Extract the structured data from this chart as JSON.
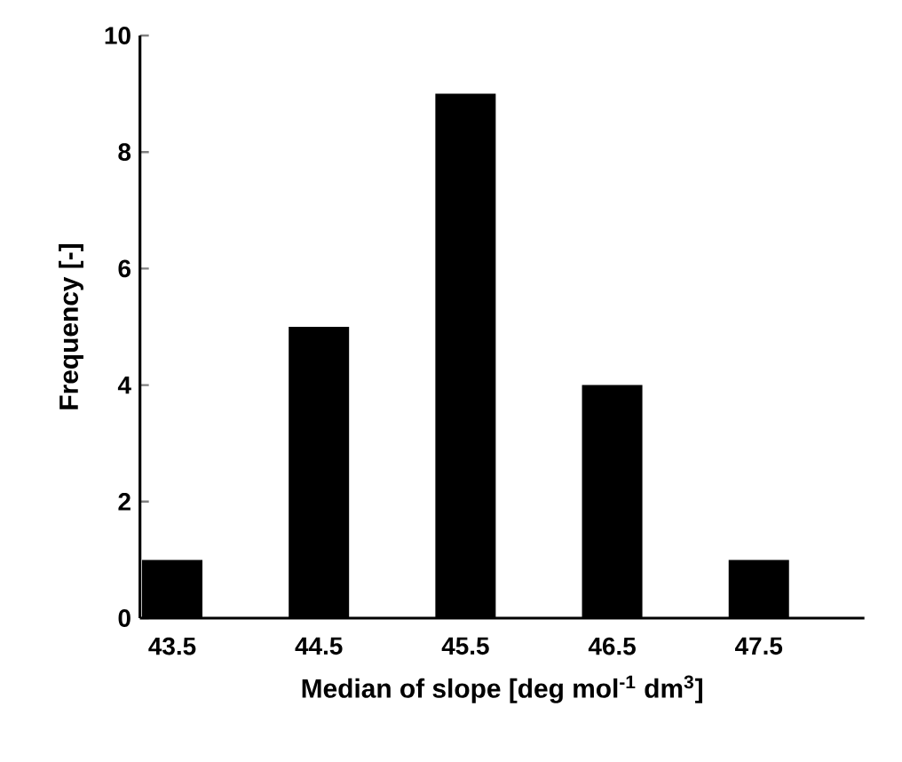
{
  "chart_data": {
    "type": "bar",
    "xlabel": "Median of slope [deg mol$^{-1}$ dm$^{3}$]",
    "ylabel": "Frequency [-]",
    "categories": [
      "43.5",
      "44.5",
      "45.5",
      "46.5",
      "47.5"
    ],
    "values": [
      1,
      5,
      9,
      4,
      1
    ],
    "color": "#000000",
    "ylim": [
      0,
      10
    ],
    "yticks": [
      0,
      2,
      4,
      6,
      8,
      10
    ]
  }
}
